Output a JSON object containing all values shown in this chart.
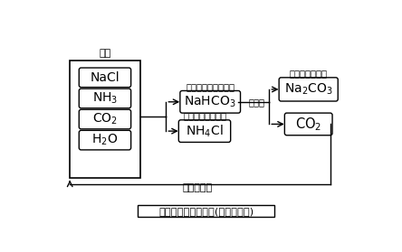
{
  "title": "アンモニアソーダ法(ソルベー法)",
  "bg_color": "#ffffff",
  "raw_material_label": "原料",
  "intermediate1_label": "炭酸水素ナトリウム",
  "intermediate2_label": "塩化アンモニウム",
  "heat_label": "熱分解",
  "product1_label": "炭酸ナトリウム",
  "recycle_label": "回収再利用",
  "figw": 4.44,
  "figh": 2.79,
  "dpi": 100
}
